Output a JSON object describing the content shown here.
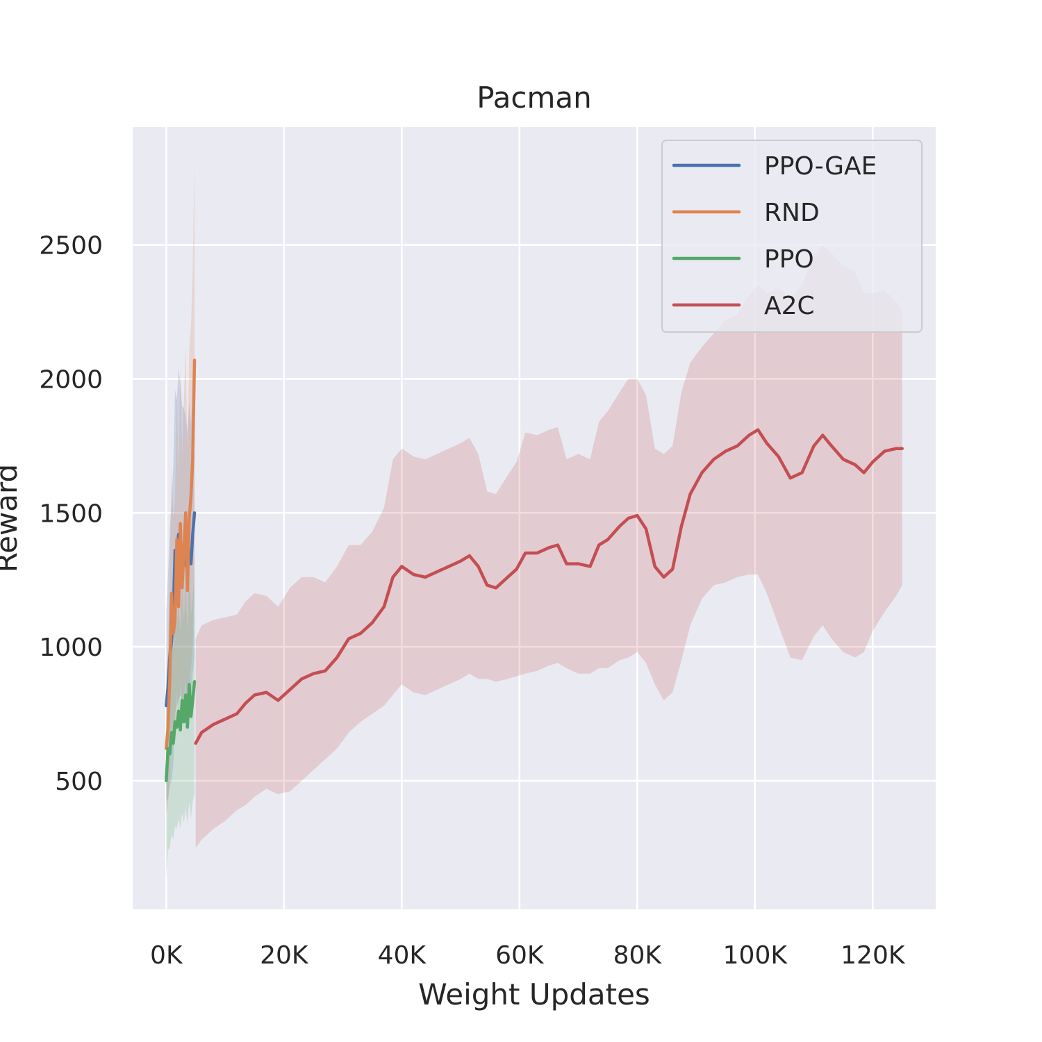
{
  "chart_data": {
    "type": "line",
    "title": "Pacman",
    "xlabel": "Weight Updates",
    "ylabel": "Reward",
    "xlim": [
      -5700,
      130700
    ],
    "ylim": [
      20,
      2940
    ],
    "xticks": [
      {
        "value": 0,
        "label": "0K"
      },
      {
        "value": 20000,
        "label": "20K"
      },
      {
        "value": 40000,
        "label": "40K"
      },
      {
        "value": 60000,
        "label": "60K"
      },
      {
        "value": 80000,
        "label": "80K"
      },
      {
        "value": 100000,
        "label": "100K"
      },
      {
        "value": 120000,
        "label": "120K"
      }
    ],
    "yticks": [
      {
        "value": 500,
        "label": "500"
      },
      {
        "value": 1000,
        "label": "1000"
      },
      {
        "value": 1500,
        "label": "1500"
      },
      {
        "value": 2000,
        "label": "2000"
      },
      {
        "value": 2500,
        "label": "2500"
      }
    ],
    "grid": true,
    "legend_position": "top-right",
    "colors": {
      "background": "#eaeaf2",
      "grid": "#ffffff",
      "text": "#262626"
    },
    "series": [
      {
        "name": "PPO-GAE",
        "color": "#4c72b0",
        "x": [
          0,
          300,
          600,
          900,
          1200,
          1500,
          1800,
          2100,
          2400,
          2700,
          3000,
          3300,
          3600,
          3900,
          4200,
          4500,
          4800
        ],
        "y": [
          780,
          850,
          960,
          1020,
          1120,
          1360,
          1350,
          1420,
          1400,
          1350,
          1340,
          1320,
          1280,
          1360,
          1310,
          1420,
          1500
        ],
        "lower": [
          430,
          430,
          480,
          500,
          560,
          750,
          780,
          800,
          820,
          800,
          790,
          780,
          760,
          810,
          790,
          900,
          960
        ],
        "upper": [
          1130,
          1270,
          1440,
          1540,
          1680,
          1960,
          1920,
          2040,
          1980,
          1900,
          1890,
          1860,
          1800,
          1910,
          1830,
          1940,
          2040
        ]
      },
      {
        "name": "RND",
        "color": "#dd8452",
        "x": [
          0,
          300,
          600,
          900,
          1200,
          1500,
          1800,
          2100,
          2400,
          2700,
          3000,
          3300,
          3600,
          3900,
          4200,
          4500,
          4800
        ],
        "y": [
          620,
          700,
          880,
          1200,
          1050,
          1100,
          1400,
          1150,
          1460,
          1220,
          1360,
          1500,
          1210,
          1480,
          1560,
          1700,
          2070
        ],
        "lower": [
          380,
          410,
          520,
          720,
          620,
          650,
          850,
          680,
          880,
          720,
          800,
          880,
          690,
          860,
          920,
          1000,
          1330
        ],
        "upper": [
          860,
          990,
          1240,
          1680,
          1480,
          1550,
          1950,
          1620,
          2040,
          1720,
          1920,
          2120,
          1730,
          2100,
          2200,
          2400,
          2820
        ]
      },
      {
        "name": "PPO",
        "color": "#55a868",
        "x": [
          0,
          300,
          600,
          900,
          1200,
          1500,
          1800,
          2100,
          2400,
          2700,
          3000,
          3300,
          3600,
          3900,
          4200,
          4500,
          4800
        ],
        "y": [
          500,
          620,
          600,
          680,
          640,
          720,
          700,
          760,
          690,
          800,
          720,
          820,
          700,
          860,
          740,
          800,
          870
        ],
        "lower": [
          130,
          240,
          250,
          300,
          280,
          330,
          320,
          360,
          320,
          380,
          340,
          400,
          340,
          420,
          360,
          420,
          460
        ],
        "upper": [
          870,
          1000,
          950,
          1060,
          1000,
          1110,
          1080,
          1160,
          1060,
          1220,
          1100,
          1240,
          1060,
          1300,
          1120,
          1180,
          1280
        ]
      },
      {
        "name": "A2C",
        "color": "#c44e52",
        "x": [
          5000,
          6000,
          8000,
          10000,
          12000,
          13500,
          15000,
          17000,
          19000,
          21000,
          23000,
          25000,
          27000,
          29000,
          31000,
          33000,
          35000,
          37000,
          38500,
          40000,
          42000,
          44000,
          46000,
          48000,
          50000,
          51500,
          53000,
          54500,
          56000,
          58000,
          59500,
          61000,
          63000,
          65000,
          66500,
          68000,
          70000,
          72000,
          73500,
          75000,
          77000,
          78500,
          80000,
          81500,
          83000,
          84500,
          86000,
          87500,
          89000,
          91000,
          93000,
          95000,
          97000,
          99000,
          100500,
          102000,
          104000,
          106000,
          108000,
          110000,
          111500,
          113000,
          115000,
          117000,
          118500,
          120000,
          122000,
          124000,
          125000
        ],
        "y": [
          640,
          680,
          710,
          730,
          750,
          790,
          820,
          830,
          800,
          840,
          880,
          900,
          910,
          960,
          1030,
          1050,
          1090,
          1150,
          1260,
          1300,
          1270,
          1260,
          1280,
          1300,
          1320,
          1340,
          1300,
          1230,
          1220,
          1260,
          1290,
          1350,
          1350,
          1370,
          1380,
          1310,
          1310,
          1300,
          1380,
          1400,
          1450,
          1480,
          1490,
          1440,
          1300,
          1260,
          1290,
          1450,
          1570,
          1650,
          1700,
          1730,
          1750,
          1790,
          1810,
          1760,
          1710,
          1630,
          1650,
          1750,
          1790,
          1750,
          1700,
          1680,
          1650,
          1690,
          1730,
          1740,
          1740
        ],
        "lower": [
          250,
          280,
          320,
          350,
          390,
          410,
          440,
          470,
          450,
          460,
          500,
          540,
          580,
          620,
          680,
          720,
          750,
          780,
          820,
          860,
          830,
          820,
          840,
          860,
          880,
          900,
          880,
          880,
          870,
          880,
          890,
          900,
          910,
          930,
          940,
          920,
          900,
          900,
          920,
          920,
          950,
          960,
          980,
          940,
          860,
          800,
          830,
          950,
          1080,
          1180,
          1230,
          1240,
          1260,
          1270,
          1270,
          1200,
          1080,
          960,
          950,
          1040,
          1080,
          1030,
          980,
          960,
          980,
          1060,
          1130,
          1190,
          1230
        ],
        "upper": [
          1030,
          1080,
          1100,
          1110,
          1120,
          1170,
          1200,
          1190,
          1150,
          1220,
          1260,
          1260,
          1240,
          1300,
          1380,
          1380,
          1430,
          1520,
          1700,
          1740,
          1710,
          1700,
          1720,
          1740,
          1760,
          1780,
          1720,
          1580,
          1570,
          1640,
          1690,
          1800,
          1790,
          1810,
          1820,
          1700,
          1720,
          1700,
          1840,
          1880,
          1950,
          2000,
          2000,
          1940,
          1740,
          1720,
          1750,
          1950,
          2060,
          2120,
          2170,
          2220,
          2240,
          2310,
          2350,
          2320,
          2340,
          2300,
          2350,
          2460,
          2500,
          2470,
          2420,
          2400,
          2320,
          2320,
          2330,
          2290,
          2250
        ]
      }
    ]
  }
}
